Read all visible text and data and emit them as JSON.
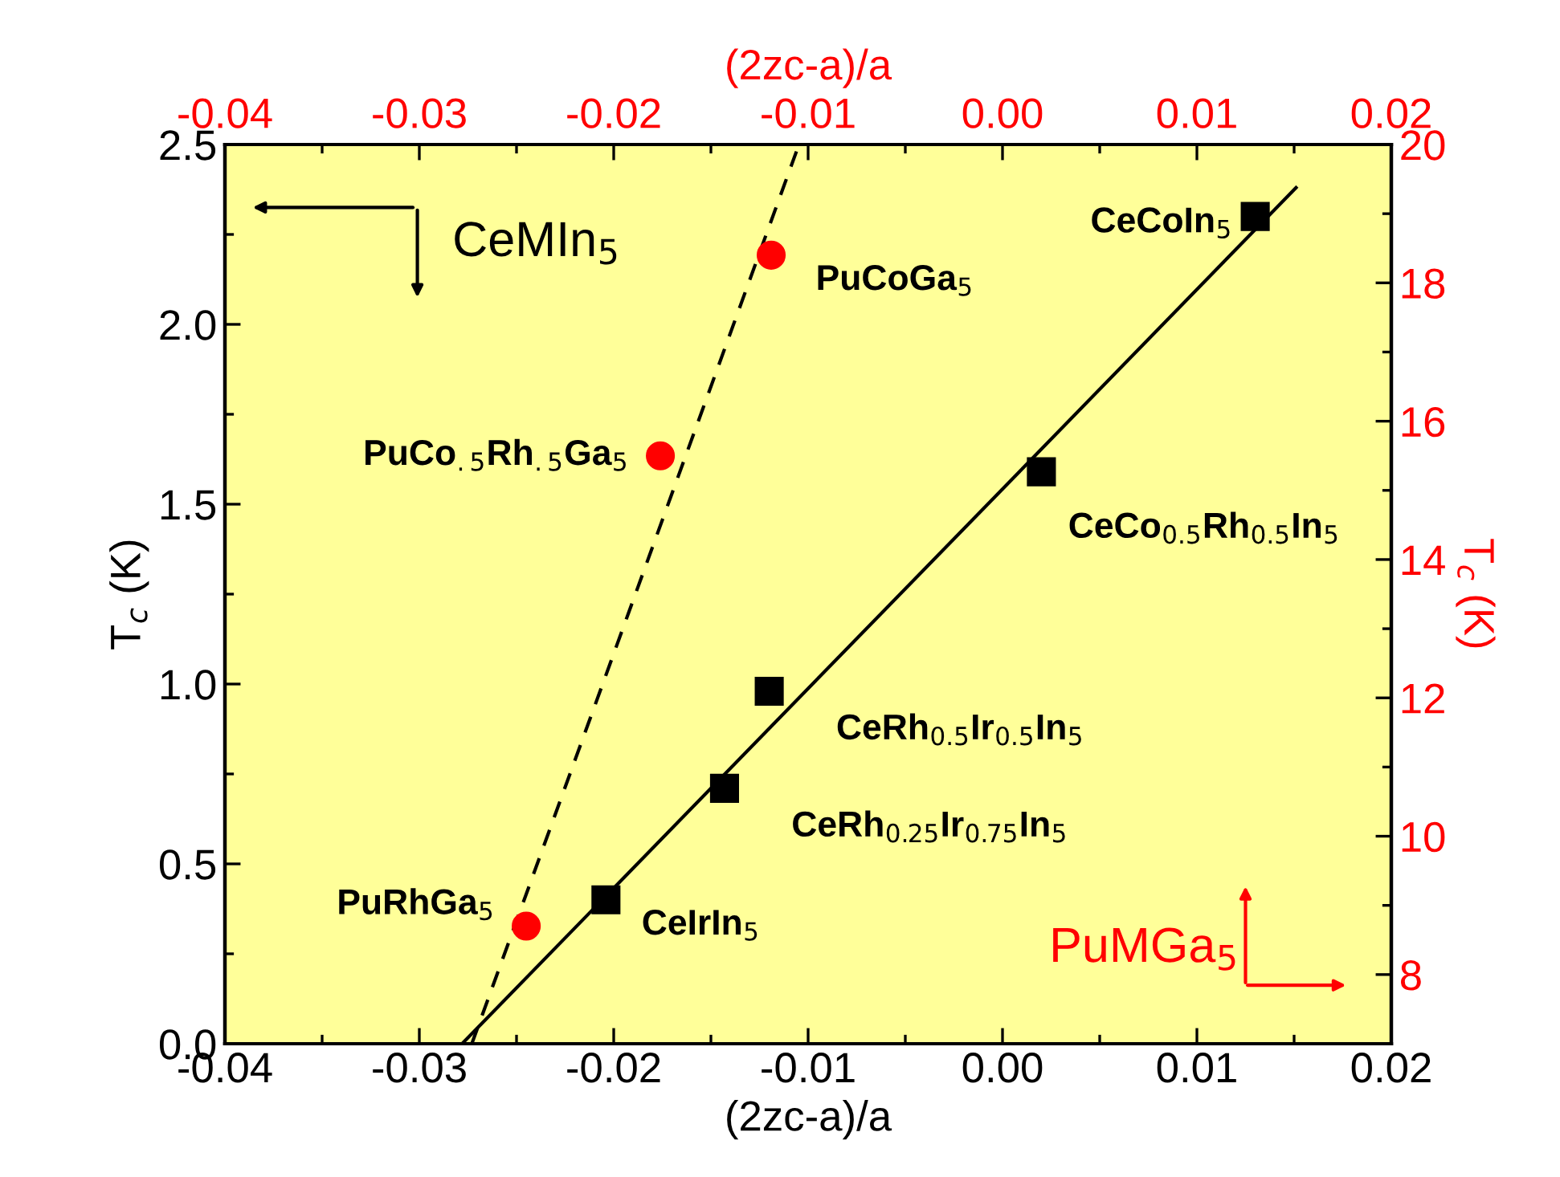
{
  "chart_data": {
    "type": "scatter",
    "xlabel": "(2zc-a)/a",
    "ylabel": "T$_{c}$ (K)",
    "y2label": "T$_{c}$ (K)",
    "x2label": "(2zc-a)/a",
    "xlim": [
      -0.04,
      0.02
    ],
    "xticks": [
      {
        "value": -0.04,
        "label": "-0.04"
      },
      {
        "value": -0.03,
        "label": "-0.03"
      },
      {
        "value": -0.02,
        "label": "-0.02"
      },
      {
        "value": -0.01,
        "label": "-0.01"
      },
      {
        "value": 0.0,
        "label": "0.00"
      },
      {
        "value": 0.01,
        "label": "0.01"
      },
      {
        "value": 0.02,
        "label": "0.02"
      }
    ],
    "x2lim": [
      -0.04,
      0.02
    ],
    "x2ticks": [
      {
        "value": -0.04,
        "label": "-0.04"
      },
      {
        "value": -0.03,
        "label": "-0.03"
      },
      {
        "value": -0.02,
        "label": "-0.02"
      },
      {
        "value": -0.01,
        "label": "-0.01"
      },
      {
        "value": 0.0,
        "label": "0.00"
      },
      {
        "value": 0.01,
        "label": "0.01"
      },
      {
        "value": 0.02,
        "label": "0.02"
      }
    ],
    "ylim": [
      0,
      2.5
    ],
    "yticks": [
      {
        "value": 0,
        "label": "0.0"
      },
      0.5,
      {
        "value": 1,
        "label": "1.0"
      },
      1.5,
      {
        "value": 2,
        "label": "2.0"
      },
      2.5
    ],
    "y2lim": [
      7,
      20
    ],
    "y2ticks": [
      8,
      10,
      12,
      14,
      16,
      18,
      20
    ],
    "grid": false,
    "legend": false,
    "marker": "square",
    "series": [
      {
        "name": "CeCoIn$_{5}$",
        "color": "#000000",
        "x": [
          0.013
        ],
        "values": [
          2.3
        ]
      },
      {
        "name": "CeCo$_{0.5}$Rh$_{0.5}$In$_{5}$",
        "color": "#000000",
        "x": [
          0.002
        ],
        "values": [
          1.59
        ]
      },
      {
        "name": "CeRh$_{0.5}$Ir$_{0.5}$In$_{5}$",
        "color": "#000000",
        "x": [
          -0.012
        ],
        "values": [
          0.98
        ]
      },
      {
        "name": "CeRh$_{0.25}$Ir$_{0.75}$In$_{5}$",
        "color": "#000000",
        "x": [
          -0.0143
        ],
        "values": [
          0.71
        ]
      },
      {
        "name": "CeIrIn$_{5}$",
        "color": "#000000",
        "x": [
          -0.0204
        ],
        "values": [
          0.4
        ]
      },
      {
        "name": "PuCoGa$_{5}$",
        "color": "#ff0000",
        "x": [
          -0.0119
        ],
        "values": [
          18.4
        ],
        "axis": "y2",
        "marker": "circle"
      },
      {
        "name": "PuCo$_{.5}$Rh$_{.5}$Ga$_{5}$",
        "color": "#ff0000",
        "x": [
          -0.0176
        ],
        "values": [
          15.5
        ],
        "axis": "y2",
        "marker": "circle"
      },
      {
        "name": "PuRhGa$_{5}$",
        "color": "#ff0000",
        "x": [
          -0.0245
        ],
        "values": [
          8.7
        ],
        "axis": "y2",
        "marker": "circle"
      },
      {
        "type": "line",
        "color": "#000000",
        "x": [
          -0.0278,
          0.0151
        ],
        "values": [
          0,
          2.38
        ],
        "marker": "none",
        "line_style": "solid"
      },
      {
        "type": "line",
        "color": "#000000",
        "x": [
          -0.0273,
          -0.0106
        ],
        "values": [
          7,
          19.9
        ],
        "axis": "y2",
        "marker": "none",
        "line_style": "dashed"
      }
    ],
    "annotations": [
      "CeMIn$_{5}$",
      "PuMGa$_{5}$"
    ]
  }
}
